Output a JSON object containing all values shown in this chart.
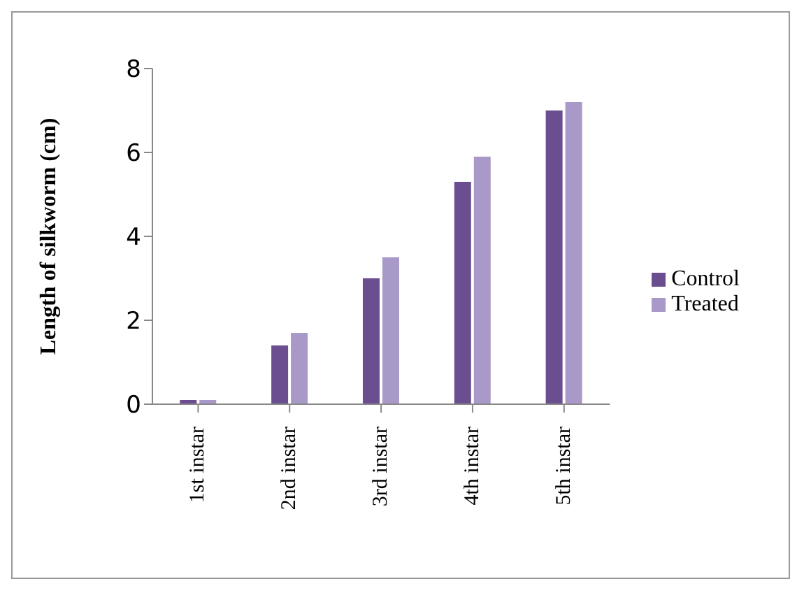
{
  "chart_data": {
    "type": "bar",
    "ylabel": "Length of silkworm (cm)",
    "categories": [
      "1st instar",
      "2nd instar",
      "3rd instar",
      "4th instar",
      "5th instar"
    ],
    "series": [
      {
        "name": "Control",
        "color": "#6b4e8f",
        "values": [
          0.1,
          1.4,
          3.0,
          5.3,
          7.0
        ]
      },
      {
        "name": "Treated",
        "color": "#a899c8",
        "values": [
          0.1,
          1.7,
          3.5,
          5.9,
          7.2
        ]
      }
    ],
    "ylim": [
      0,
      8
    ],
    "yticks": [
      0,
      2,
      4,
      6,
      8
    ],
    "grid": false,
    "legend": "right"
  }
}
